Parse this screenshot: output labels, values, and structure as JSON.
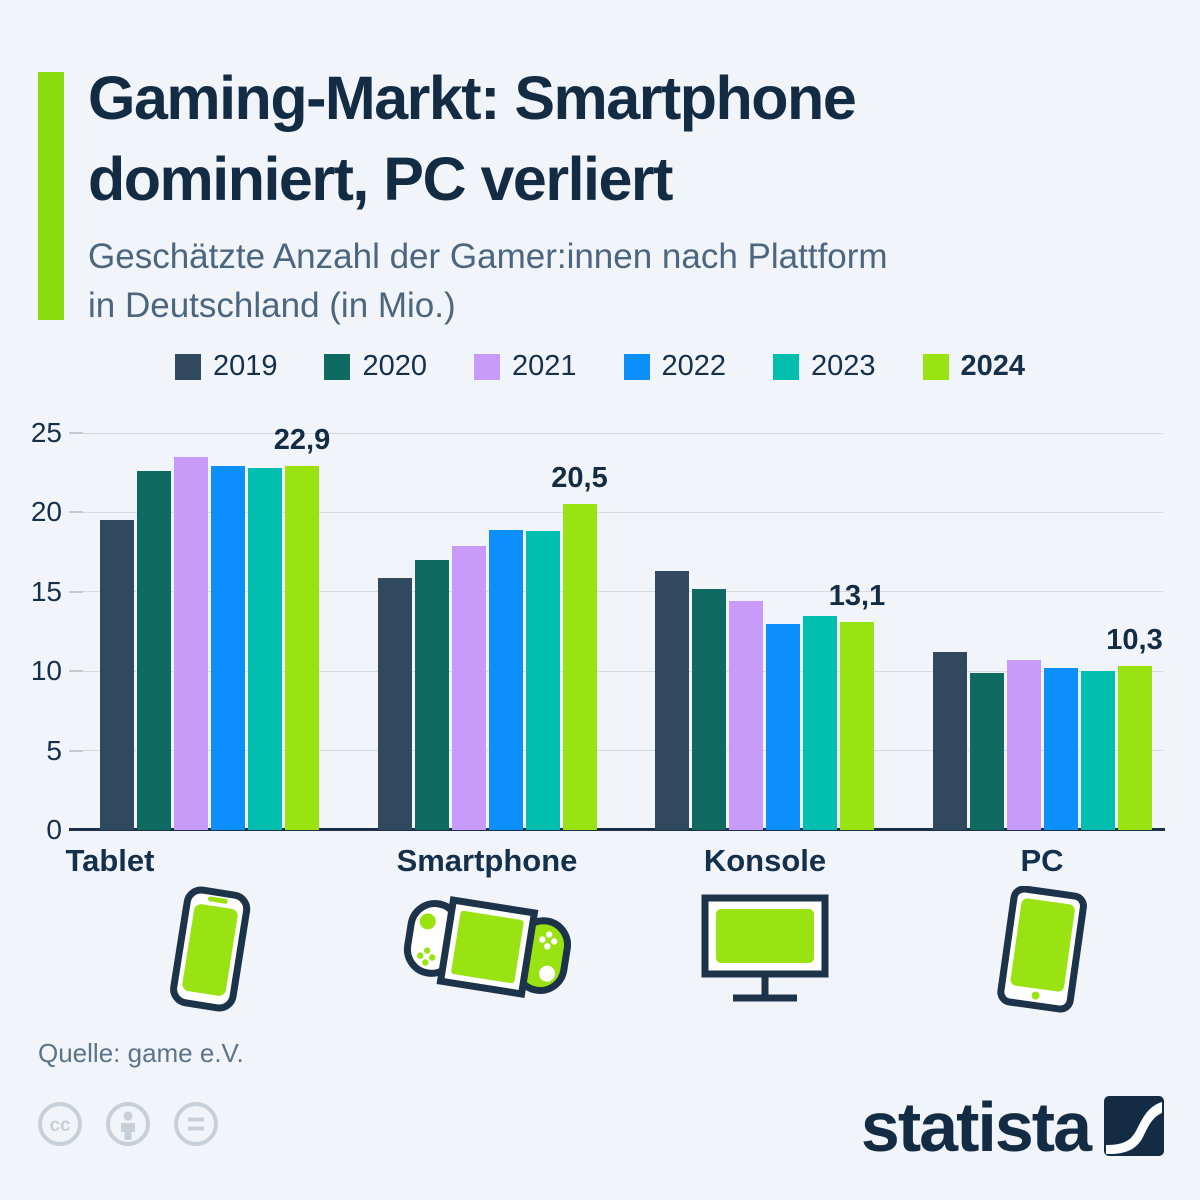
{
  "header": {
    "accent_color": "#8bdc0f",
    "title_lines": [
      "Gaming-Markt: Smartphone",
      "dominiert, PC verliert"
    ],
    "subtitle_lines": [
      "Geschätzte Anzahl der Gamer:innen nach Plattform",
      "in Deutschland (in Mio.)"
    ]
  },
  "chart_data": {
    "type": "bar",
    "title": "Gaming-Markt: Smartphone dominiert, PC verliert",
    "subtitle": "Geschätzte Anzahl der Gamer:innen nach Plattform in Deutschland (in Mio.)",
    "xlabel": "",
    "ylabel": "",
    "ylim": [
      0,
      25
    ],
    "yticks": [
      0,
      5,
      10,
      15,
      20,
      25
    ],
    "grid": true,
    "legend_position": "top",
    "categories": [
      "Smartphone",
      "Konsole",
      "PC",
      "Tablet"
    ],
    "series": [
      {
        "name": "2019",
        "color": "#31495f",
        "values": [
          19.5,
          15.9,
          16.3,
          11.2
        ]
      },
      {
        "name": "2020",
        "color": "#0f6b61",
        "values": [
          22.6,
          17.0,
          15.2,
          9.9
        ]
      },
      {
        "name": "2021",
        "color": "#c89bfa",
        "values": [
          23.5,
          17.9,
          14.4,
          10.7
        ]
      },
      {
        "name": "2022",
        "color": "#0d8ffb",
        "values": [
          22.9,
          18.9,
          13.0,
          10.2
        ]
      },
      {
        "name": "2023",
        "color": "#00bfae",
        "values": [
          22.8,
          18.8,
          13.5,
          10.0
        ]
      },
      {
        "name": "2024",
        "color": "#9ae312",
        "values": [
          22.9,
          20.5,
          13.1,
          10.3
        ],
        "bold": true
      }
    ],
    "value_labels": [
      "22,9",
      "20,5",
      "13,1",
      "10,3"
    ]
  },
  "icons": {
    "smartphone": "smartphone-icon",
    "konsole": "game-console-icon",
    "pc": "desktop-monitor-icon",
    "tablet": "tablet-icon"
  },
  "footer": {
    "source": "Quelle: game e.V.",
    "license_icons": [
      "cc-icon",
      "cc-by-person-icon",
      "cc-nd-equals-icon"
    ],
    "brand": "statista"
  },
  "colors": {
    "background": "#f1f4f9",
    "title": "#132c44",
    "subtitle": "#4d6680",
    "icon_outline": "#1d3349",
    "icon_fill": "#9ae312",
    "gridline": "#d6dbe3",
    "axis": "#1b3048"
  }
}
